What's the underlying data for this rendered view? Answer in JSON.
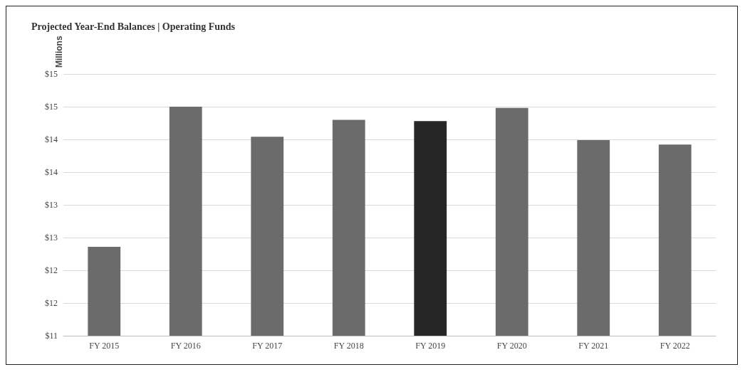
{
  "chart_data": {
    "type": "bar",
    "title": "Projected Year-End Balances | Operating Funds",
    "ylabel": "Millions",
    "categories": [
      "FY 2015",
      "FY 2016",
      "FY 2017",
      "FY 2018",
      "FY 2019",
      "FY 2020",
      "FY 2021",
      "FY 2022"
    ],
    "values": [
      12.36,
      14.5,
      14.04,
      14.3,
      14.28,
      14.48,
      13.99,
      13.92
    ],
    "colors": [
      "#6b6b6b",
      "#6b6b6b",
      "#6b6b6b",
      "#6b6b6b",
      "#262626",
      "#6b6b6b",
      "#6b6b6b",
      "#6b6b6b"
    ],
    "ylim": [
      11,
      15
    ],
    "yticks": [
      {
        "value": 11,
        "label": "$11"
      },
      {
        "value": 11.5,
        "label": "$12"
      },
      {
        "value": 12,
        "label": "$12"
      },
      {
        "value": 12.5,
        "label": "$13"
      },
      {
        "value": 13,
        "label": "$13"
      },
      {
        "value": 13.5,
        "label": "$14"
      },
      {
        "value": 14,
        "label": "$14"
      },
      {
        "value": 14.5,
        "label": "$15"
      },
      {
        "value": 15,
        "label": "$15"
      }
    ],
    "grid": "y"
  }
}
